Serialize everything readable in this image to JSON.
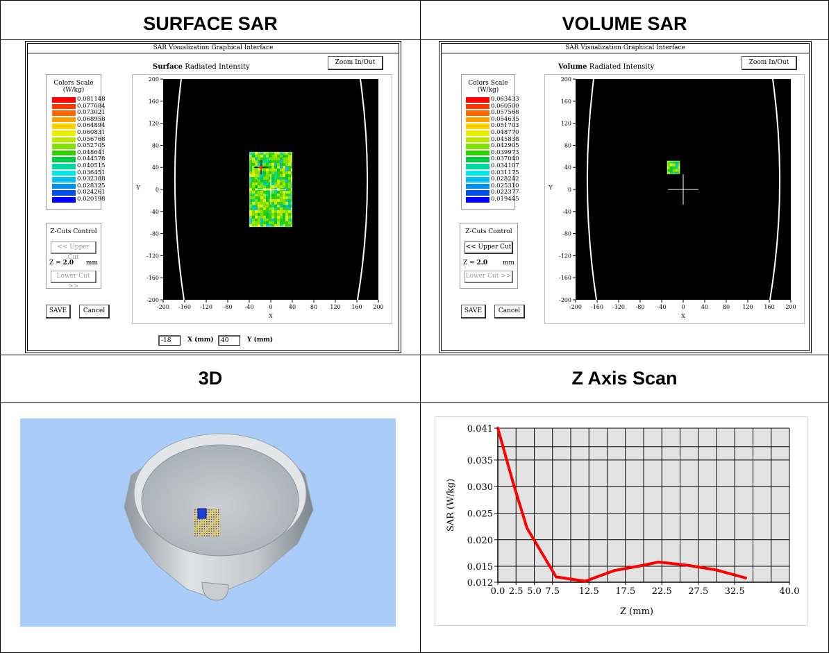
{
  "headers": {
    "surface": "SURFACE SAR",
    "volume": "VOLUME SAR",
    "three_d": "3D",
    "z_scan": "Z Axis Scan"
  },
  "surface_window": {
    "title": "SAR Visualization Graphical Interface",
    "zoom_button": "Zoom In/Out",
    "mode_word": "Surface",
    "mode_rest": "Radiated Intensity",
    "scale_title": "Colors Scale",
    "scale_unit": "(W/kg)",
    "scale_values": [
      "0.081148",
      "0.077084",
      "0.073021",
      "0.068958",
      "0.064894",
      "0.060831",
      "0.056768",
      "0.052705",
      "0.048641",
      "0.044578",
      "0.040515",
      "0.036451",
      "0.032388",
      "0.028325",
      "0.024261",
      "0.020198"
    ],
    "zcuts_title": "Z-Cuts Control",
    "upper_cut": "<< Upper Cut",
    "z_label": "Z = ",
    "z_value": "2.0",
    "z_unit": "mm",
    "lower_cut": "Lower Cut >>",
    "save": "SAVE",
    "cancel": "Cancel",
    "x_input": "-18",
    "x_label": "X (mm)",
    "y_input": "40",
    "y_label": "Y (mm)",
    "axis_x_label": "X",
    "axis_y_label": "Y",
    "ticks": [
      "-200",
      "-160",
      "-120",
      "-80",
      "-40",
      "0",
      "40",
      "80",
      "120",
      "160",
      "200"
    ]
  },
  "volume_window": {
    "title": "SAR Visualization Graphical Interface",
    "zoom_button": "Zoom In/Out",
    "mode_word": "Volume",
    "mode_rest": "Radiated Intensity",
    "scale_title": "Colors Scale",
    "scale_unit": "(W/kg)",
    "scale_values": [
      "0.063433",
      "0.060500",
      "0.057568",
      "0.054635",
      "0.051703",
      "0.048770",
      "0.045838",
      "0.042905",
      "0.039973",
      "0.037040",
      "0.034107",
      "0.031175",
      "0.028242",
      "0.025310",
      "0.022377",
      "0.019445"
    ],
    "zcuts_title": "Z-Cuts Control",
    "upper_cut": "<< Upper Cut",
    "z_label": "Z = ",
    "z_value": "2.0",
    "z_unit": "mm",
    "lower_cut": "Lower Cut >>",
    "save": "SAVE",
    "cancel": "Cancel",
    "axis_x_label": "X",
    "axis_y_label": "Y",
    "ticks": [
      "-200",
      "-160",
      "-120",
      "-80",
      "-40",
      "0",
      "40",
      "80",
      "120",
      "160",
      "200"
    ]
  },
  "colors": {
    "scale": [
      "#ff0000",
      "#ff3300",
      "#ff6600",
      "#ffa000",
      "#ffd000",
      "#e8f000",
      "#b8e800",
      "#80e000",
      "#30d000",
      "#00c840",
      "#00d8a0",
      "#00e8e8",
      "#00c0f0",
      "#0090f0",
      "#0050e8",
      "#0000ff"
    ],
    "plot_bg": "#000000",
    "threed_bg": "#aaccf8",
    "curve": "#ff0000"
  },
  "chart_data": {
    "type": "line",
    "title": "",
    "xlabel": "Z (mm)",
    "ylabel": "SAR (W/kg)",
    "x_ticks": [
      "0.0",
      "2.5",
      "5.0",
      "7.5",
      "12.5",
      "17.5",
      "22.5",
      "27.5",
      "32.5",
      "40.0"
    ],
    "y_ticks": [
      "0.041",
      "0.035",
      "0.030",
      "0.025",
      "0.020",
      "0.015",
      "0.012"
    ],
    "xlim": [
      0,
      40
    ],
    "ylim": [
      0.012,
      0.041
    ],
    "grid": true,
    "series": [
      {
        "x": [
          0.0,
          2.0,
          4.0,
          8.0,
          12.0,
          16.0,
          20.0,
          22.0,
          26.0,
          30.0,
          34.0
        ],
        "y": [
          0.041,
          0.0312,
          0.0222,
          0.013,
          0.0122,
          0.0142,
          0.0152,
          0.0158,
          0.0152,
          0.0143,
          0.0128
        ]
      }
    ]
  }
}
